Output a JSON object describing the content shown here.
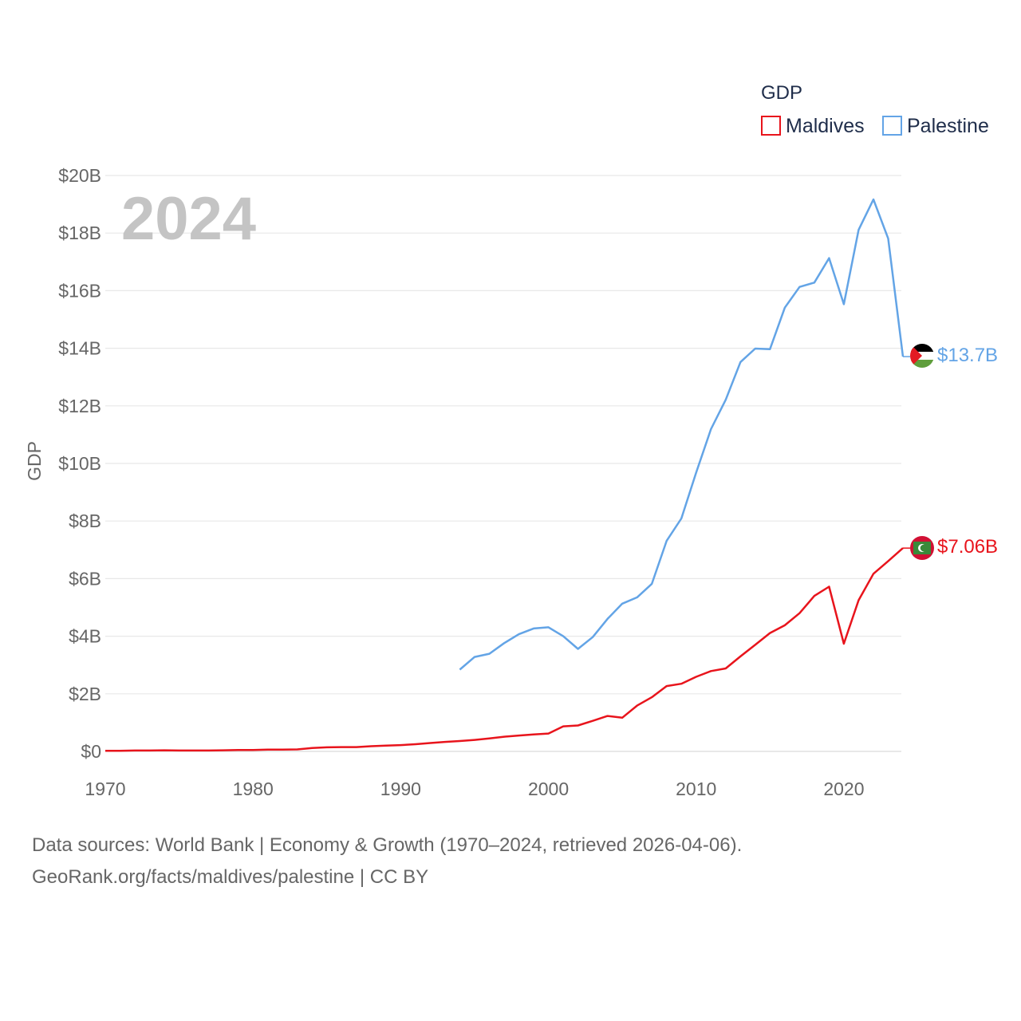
{
  "chart_data": {
    "type": "line",
    "title": "",
    "year_label": "2024",
    "xlabel": "",
    "ylabel": "GDP",
    "legend_title": "GDP",
    "legend_position": "top-right",
    "xlim": [
      1970,
      2024
    ],
    "ylim": [
      0,
      20
    ],
    "x_ticks": [
      1970,
      1980,
      1990,
      2000,
      2010,
      2020
    ],
    "x_tick_labels": [
      "1970",
      "1980",
      "1990",
      "2000",
      "2010",
      "2020"
    ],
    "y_ticks": [
      0,
      2,
      4,
      6,
      8,
      10,
      12,
      14,
      16,
      18,
      20
    ],
    "y_tick_labels": [
      "$0",
      "$2B",
      "$4B",
      "$6B",
      "$8B",
      "$10B",
      "$12B",
      "$14B",
      "$16B",
      "$18B",
      "$20B"
    ],
    "grid": true,
    "units": "USD billions",
    "series": [
      {
        "name": "Maldives",
        "color": "#e8141c",
        "end_label": "$7.06B",
        "flag": "maldives",
        "x": [
          1970,
          1971,
          1972,
          1973,
          1974,
          1975,
          1976,
          1977,
          1978,
          1979,
          1980,
          1981,
          1982,
          1983,
          1984,
          1985,
          1986,
          1987,
          1988,
          1989,
          1990,
          1991,
          1992,
          1993,
          1994,
          1995,
          1996,
          1997,
          1998,
          1999,
          2000,
          2001,
          2002,
          2003,
          2004,
          2005,
          2006,
          2007,
          2008,
          2009,
          2010,
          2011,
          2012,
          2013,
          2014,
          2015,
          2016,
          2017,
          2018,
          2019,
          2020,
          2021,
          2022,
          2023,
          2024
        ],
        "values": [
          0.02,
          0.02,
          0.03,
          0.03,
          0.04,
          0.03,
          0.03,
          0.03,
          0.04,
          0.05,
          0.05,
          0.06,
          0.06,
          0.07,
          0.12,
          0.14,
          0.15,
          0.15,
          0.18,
          0.2,
          0.22,
          0.25,
          0.29,
          0.33,
          0.36,
          0.4,
          0.45,
          0.51,
          0.55,
          0.59,
          0.62,
          0.87,
          0.9,
          1.06,
          1.23,
          1.17,
          1.59,
          1.88,
          2.27,
          2.35,
          2.59,
          2.79,
          2.88,
          3.3,
          3.7,
          4.11,
          4.38,
          4.8,
          5.4,
          5.72,
          3.74,
          5.25,
          6.17,
          6.61,
          7.06
        ]
      },
      {
        "name": "Palestine",
        "color": "#63a4e6",
        "end_label": "$13.7B",
        "flag": "palestine",
        "x": [
          1994,
          1995,
          1996,
          1997,
          1998,
          1999,
          2000,
          2001,
          2002,
          2003,
          2004,
          2005,
          2006,
          2007,
          2008,
          2009,
          2010,
          2011,
          2012,
          2013,
          2014,
          2015,
          2016,
          2017,
          2018,
          2019,
          2020,
          2021,
          2022,
          2023,
          2024
        ],
        "values": [
          2.84,
          3.28,
          3.39,
          3.76,
          4.07,
          4.27,
          4.31,
          4.0,
          3.56,
          3.97,
          4.6,
          5.13,
          5.35,
          5.82,
          7.31,
          8.09,
          9.68,
          11.19,
          12.21,
          13.52,
          13.99,
          13.97,
          15.41,
          16.13,
          16.28,
          17.13,
          15.53,
          18.11,
          19.17,
          17.81,
          13.71
        ]
      }
    ]
  },
  "footer": {
    "line1": "Data sources: World Bank | Economy & Growth (1970–2024, retrieved 2026-04-06).",
    "line2": "GeoRank.org/facts/maldives/palestine | CC BY"
  }
}
